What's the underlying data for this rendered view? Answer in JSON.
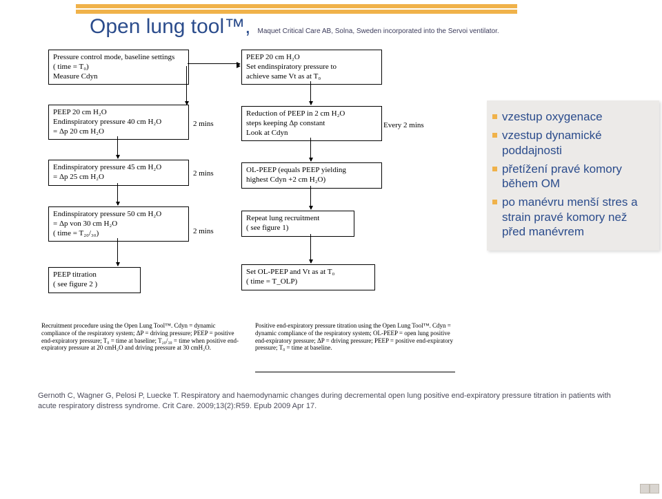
{
  "title": {
    "main": "Open lung tool™,",
    "sub": "Maquet Critical Care AB, Solna, Sweden incorporated into the Servoi ventilator."
  },
  "flow": {
    "left": {
      "box1": "Pressure control mode, baseline settings\n( time = T₀)\nMeasure Cdyn",
      "box2": "PEEP 20 cm H₂O\nEndinspiratory pressure 40 cm H₂O\n= Δp 20 cm H₂O",
      "box3": "Endinspiratory pressure 45 cm H₂O\n= Δp 25 cm H₂O",
      "box4": "Endinspiratory pressure 50 cm H₂O\n= Δp von 30 cm H₂O\n( time = T₂₀/₃₀)",
      "box5": "PEEP titration\n( see figure 2 )",
      "t2": "2 mins",
      "t3": "2 mins",
      "t4": "2 mins"
    },
    "right": {
      "box1": "PEEP 20 cm H₂O\nSet endinspiratory pressure to\nachieve same Vt as at T₀",
      "box2": "Reduction of PEEP in 2 cm H₂O\nsteps keeping Δp constant\nLook at Cdyn",
      "box3": "OL-PEEP (equals PEEP yielding\nhighest Cdyn +2 cm H₂O)",
      "box4": "Repeat lung recruitment\n( see figure 1)",
      "box5": "Set OL-PEEP and Vt as at T₀\n( time = T_OLP)",
      "t2": "Every 2 mins"
    }
  },
  "info": {
    "items": [
      "vzestup  oxygenace",
      "vzestup  dynamické poddajnosti",
      "přetížení pravé komory během OM",
      "po manévru menší stres a strain pravé komory než před manévrem"
    ]
  },
  "captions": {
    "left": "Recruitment procedure using the Open Lung Tool™. Cdyn = dynamic compliance of the respiratory system; ΔP = driving pressure; PEEP = positive end-expiratory pressure; T₀ = time at baseline; T₂₀/₃₀ = time when positive end-expiratory pressure at 20 cmH₂O and driving pressure at 30 cmH₂O.",
    "right": "Positive end-expiratory pressure titration using the Open Lung Tool™. Cdyn = dynamic compliance of the respiratory system; OL-PEEP = open lung positive end-expiratory pressure; ΔP = driving pressure; PEEP = positive end-expiratory pressure; T₀ = time at baseline."
  },
  "citation": "Gernoth C, Wagner G, Pelosi P, Luecke T. Respiratory and haemodynamic changes during decremental open lung positive end-expiratory pressure titration in patients with acute respiratory distress syndrome. Crit Care. 2009;13(2):R59. Epub 2009 Apr 17.",
  "colors": {
    "blue": "#2b4c8c",
    "gold": "#f0b24a",
    "panel_bg": "#eceae8"
  }
}
